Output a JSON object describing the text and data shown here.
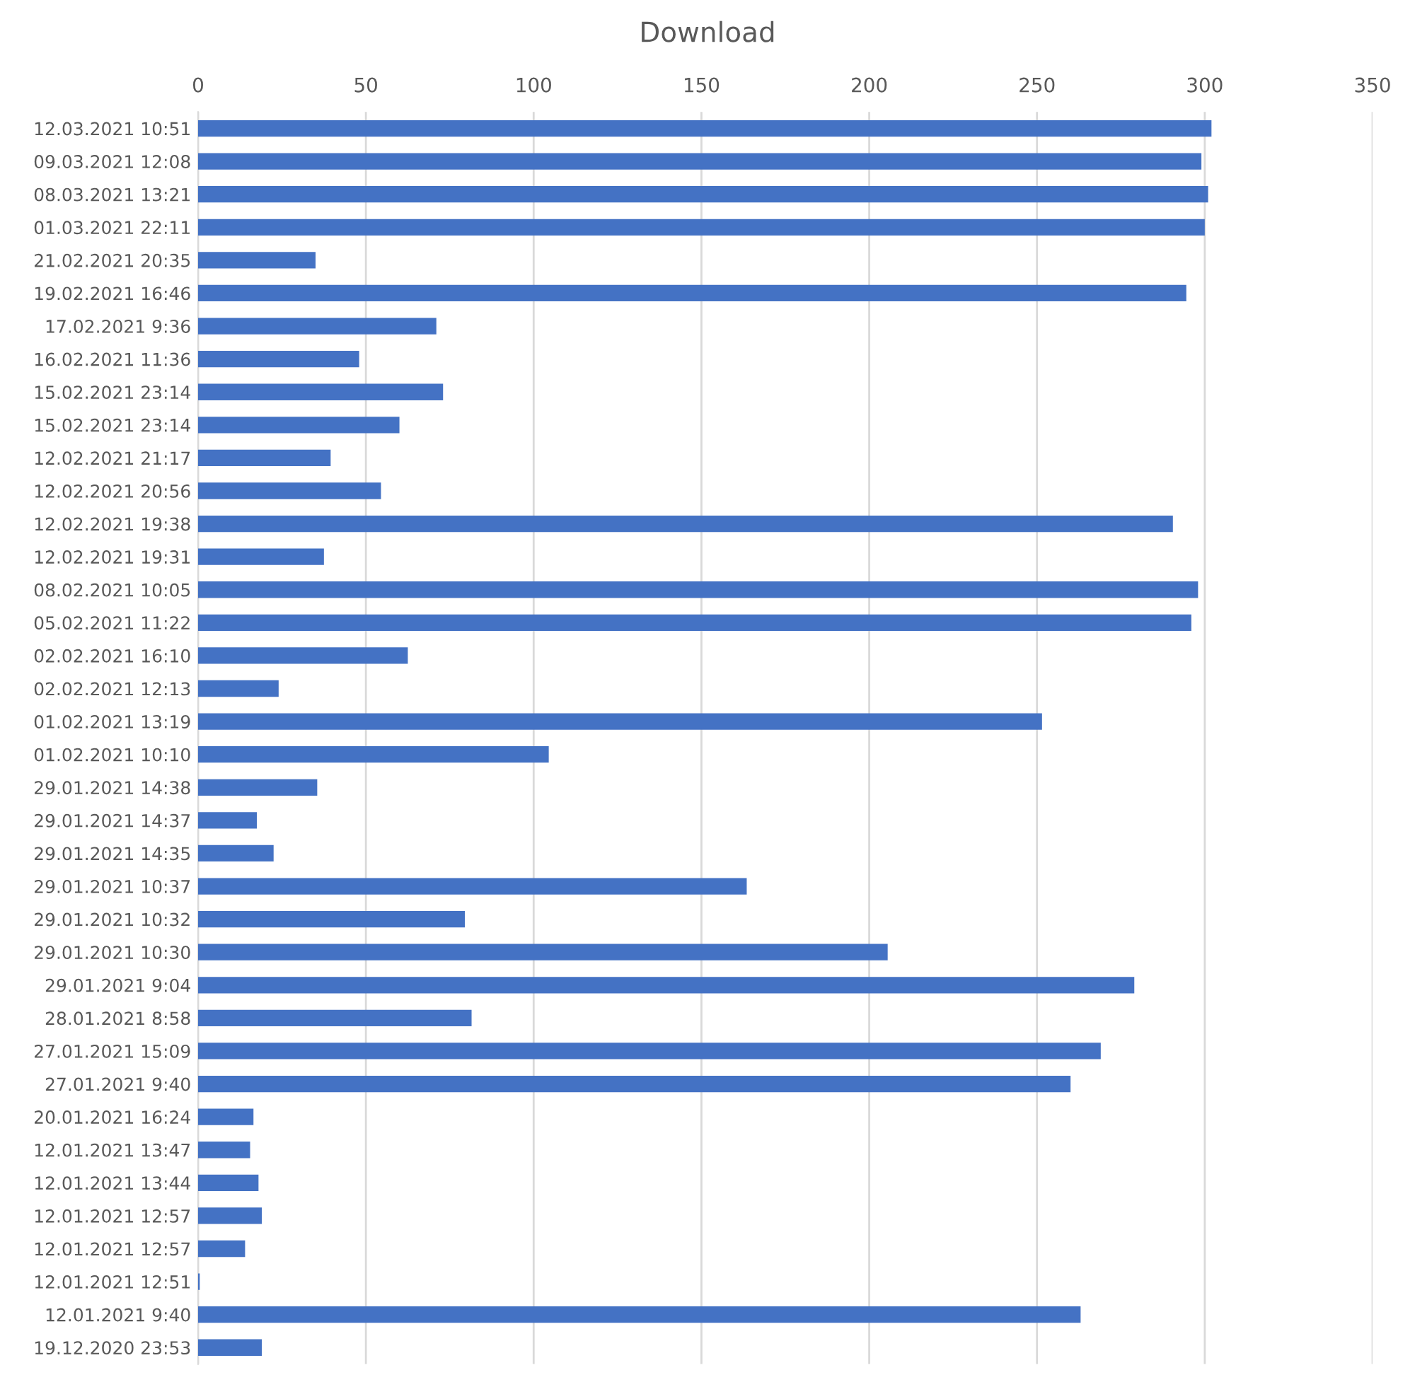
{
  "chart_data": {
    "type": "bar",
    "orientation": "horizontal",
    "title": "Download",
    "categories": [
      "12.03.2021 10:51",
      "09.03.2021 12:08",
      "08.03.2021 13:21",
      "01.03.2021 22:11",
      "21.02.2021 20:35",
      "19.02.2021 16:46",
      "17.02.2021 9:36",
      "16.02.2021 11:36",
      "15.02.2021 23:14",
      "15.02.2021 23:14",
      "12.02.2021 21:17",
      "12.02.2021 20:56",
      "12.02.2021 19:38",
      "12.02.2021 19:31",
      "08.02.2021 10:05",
      "05.02.2021 11:22",
      "02.02.2021 16:10",
      "02.02.2021 12:13",
      "01.02.2021 13:19",
      "01.02.2021 10:10",
      "29.01.2021 14:38",
      "29.01.2021 14:37",
      "29.01.2021 14:35",
      "29.01.2021 10:37",
      "29.01.2021 10:32",
      "29.01.2021 10:30",
      "29.01.2021 9:04",
      "28.01.2021 8:58",
      "27.01.2021 15:09",
      "27.01.2021 9:40",
      "20.01.2021 16:24",
      "12.01.2021 13:47",
      "12.01.2021 13:44",
      "12.01.2021 12:57",
      "12.01.2021 12:57",
      "12.01.2021 12:51",
      "12.01.2021 9:40",
      "19.12.2020 23:53"
    ],
    "values": [
      302,
      299,
      301,
      300,
      35,
      294.5,
      71,
      48,
      73,
      60,
      39.5,
      54.5,
      290.5,
      37.5,
      298,
      296,
      62.5,
      24,
      251.5,
      104.5,
      35.5,
      17.5,
      22.5,
      163.5,
      79.5,
      205.5,
      279,
      81.5,
      269,
      260,
      16.5,
      15.5,
      18,
      19,
      14,
      0.5,
      263,
      19
    ],
    "color": "#4472c4",
    "xlim": [
      0,
      350
    ],
    "xticks": [
      0,
      50,
      100,
      150,
      200,
      250,
      300,
      350
    ],
    "grid": "x"
  }
}
